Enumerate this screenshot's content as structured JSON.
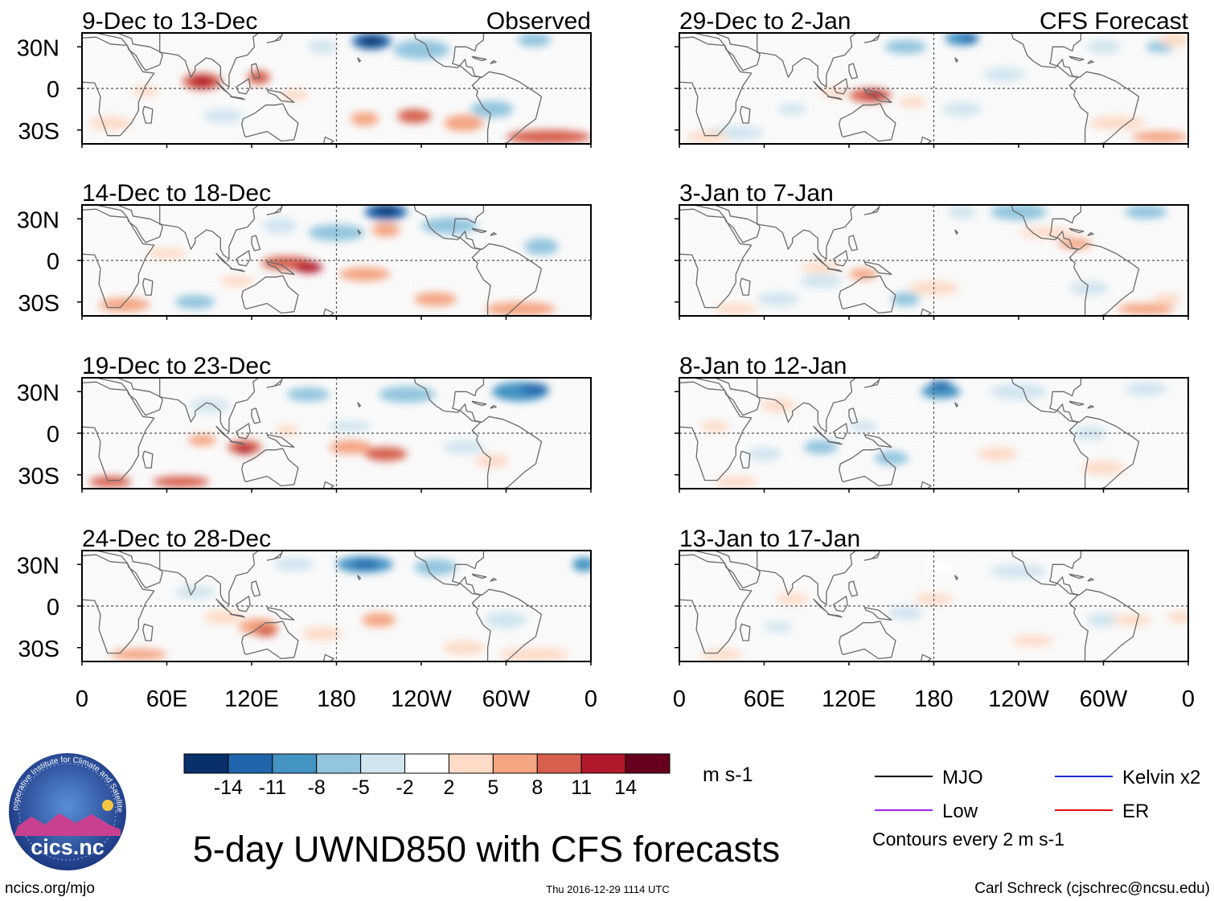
{
  "chart_data": {
    "type": "heatmap",
    "title": "5-day UWND850 with CFS forecasts",
    "variable": "850-hPa zonal wind anomaly",
    "units": "m s-1",
    "contour_interval_note": "Contours every 2 m s-1",
    "x_axis": {
      "ticks": [
        "0",
        "60E",
        "120E",
        "180",
        "120W",
        "60W",
        "0"
      ],
      "range_lon": [
        0,
        360
      ]
    },
    "y_axis": {
      "ticks": [
        "30N",
        "0",
        "30S"
      ],
      "range_lat": [
        -40,
        40
      ]
    },
    "color_scale": {
      "boundaries": [
        "-14",
        "-11",
        "-8",
        "-5",
        "-2",
        "2",
        "5",
        "8",
        "11",
        "14"
      ],
      "colors": [
        "#08306b",
        "#2166ac",
        "#4393c3",
        "#92c5de",
        "#d1e5f0",
        "#ffffff",
        "#fddbc7",
        "#f4a582",
        "#d6604d",
        "#b2182b",
        "#67001f"
      ]
    },
    "columns": [
      {
        "label": "Observed",
        "panels": [
          {
            "period": "9-Dec to 13-Dec"
          },
          {
            "period": "14-Dec to 18-Dec"
          },
          {
            "period": "19-Dec to 23-Dec"
          },
          {
            "period": "24-Dec to 28-Dec"
          }
        ]
      },
      {
        "label": "CFS Forecast",
        "panels": [
          {
            "period": "29-Dec to 2-Jan"
          },
          {
            "period": "3-Jan to 7-Jan"
          },
          {
            "period": "8-Jan to 12-Jan"
          },
          {
            "period": "13-Jan to 17-Jan"
          }
        ]
      }
    ],
    "legend": [
      {
        "name": "MJO",
        "color": "#000000"
      },
      {
        "name": "Kelvin x2",
        "color": "#1a2bd6"
      },
      {
        "name": "Low",
        "color": "#a020f0"
      },
      {
        "name": "ER",
        "color": "#e01010"
      }
    ]
  },
  "footer": {
    "left_url": "ncics.org/mjo",
    "timestamp": "Thu 2016-12-29 1114 UTC",
    "credit": "Carl Schreck (cjschrec@ncsu.edu)",
    "logo_text": "cics.nc",
    "logo_ring_text": "Cooperative Institute for Climate and Satellites"
  }
}
